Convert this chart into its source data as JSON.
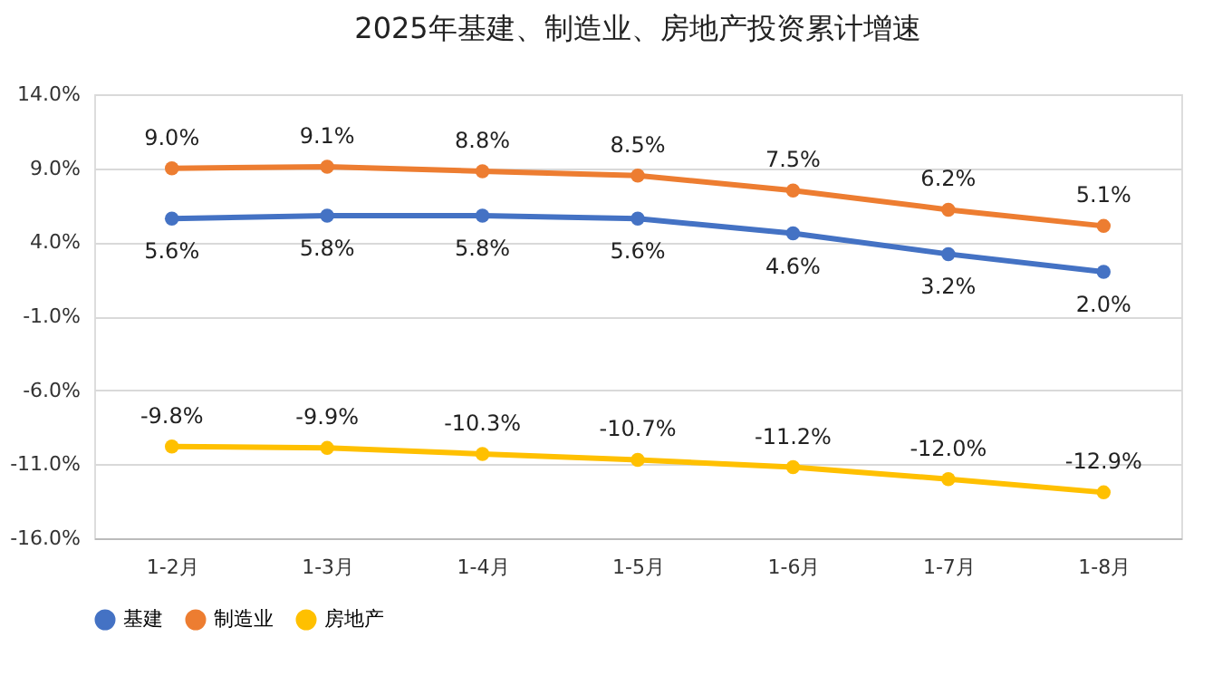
{
  "chart_data": {
    "type": "line",
    "title": "2025年基建、制造业、房地产投资累计增速",
    "categories": [
      "1-2月",
      "1-3月",
      "1-4月",
      "1-5月",
      "1-6月",
      "1-7月",
      "1-8月"
    ],
    "series": [
      {
        "name": "基建",
        "color": "#4472c4",
        "values": [
          5.6,
          5.8,
          5.8,
          5.6,
          4.6,
          3.2,
          2.0
        ],
        "value_labels": [
          "5.6%",
          "5.8%",
          "5.8%",
          "5.6%",
          "4.6%",
          "3.2%",
          "2.0%"
        ]
      },
      {
        "name": "制造业",
        "color": "#ed7d31",
        "values": [
          9.0,
          9.1,
          8.8,
          8.5,
          7.5,
          6.2,
          5.1
        ],
        "value_labels": [
          "9.0%",
          "9.1%",
          "8.8%",
          "8.5%",
          "7.5%",
          "6.2%",
          "5.1%"
        ]
      },
      {
        "name": "房地产",
        "color": "#ffc000",
        "values": [
          -9.8,
          -9.9,
          -10.3,
          -10.7,
          -11.2,
          -12.0,
          -12.9
        ],
        "value_labels": [
          "-9.8%",
          "-9.9%",
          "-10.3%",
          "-10.7%",
          "-11.2%",
          "-12.0%",
          "-12.9%"
        ]
      }
    ],
    "ylim": [
      -16,
      14
    ],
    "yticks": [
      {
        "value": -16,
        "label": "-16.0%"
      },
      {
        "value": -11,
        "label": "-11.0%"
      },
      {
        "value": -6,
        "label": "-6.0%"
      },
      {
        "value": -1,
        "label": "-1.0%"
      },
      {
        "value": 4,
        "label": "4.0%"
      },
      {
        "value": 9,
        "label": "9.0%"
      },
      {
        "value": 14,
        "label": "14.0%"
      }
    ],
    "grid": "y",
    "legend": "bottom",
    "marker": "circle",
    "line_style": "solid"
  }
}
